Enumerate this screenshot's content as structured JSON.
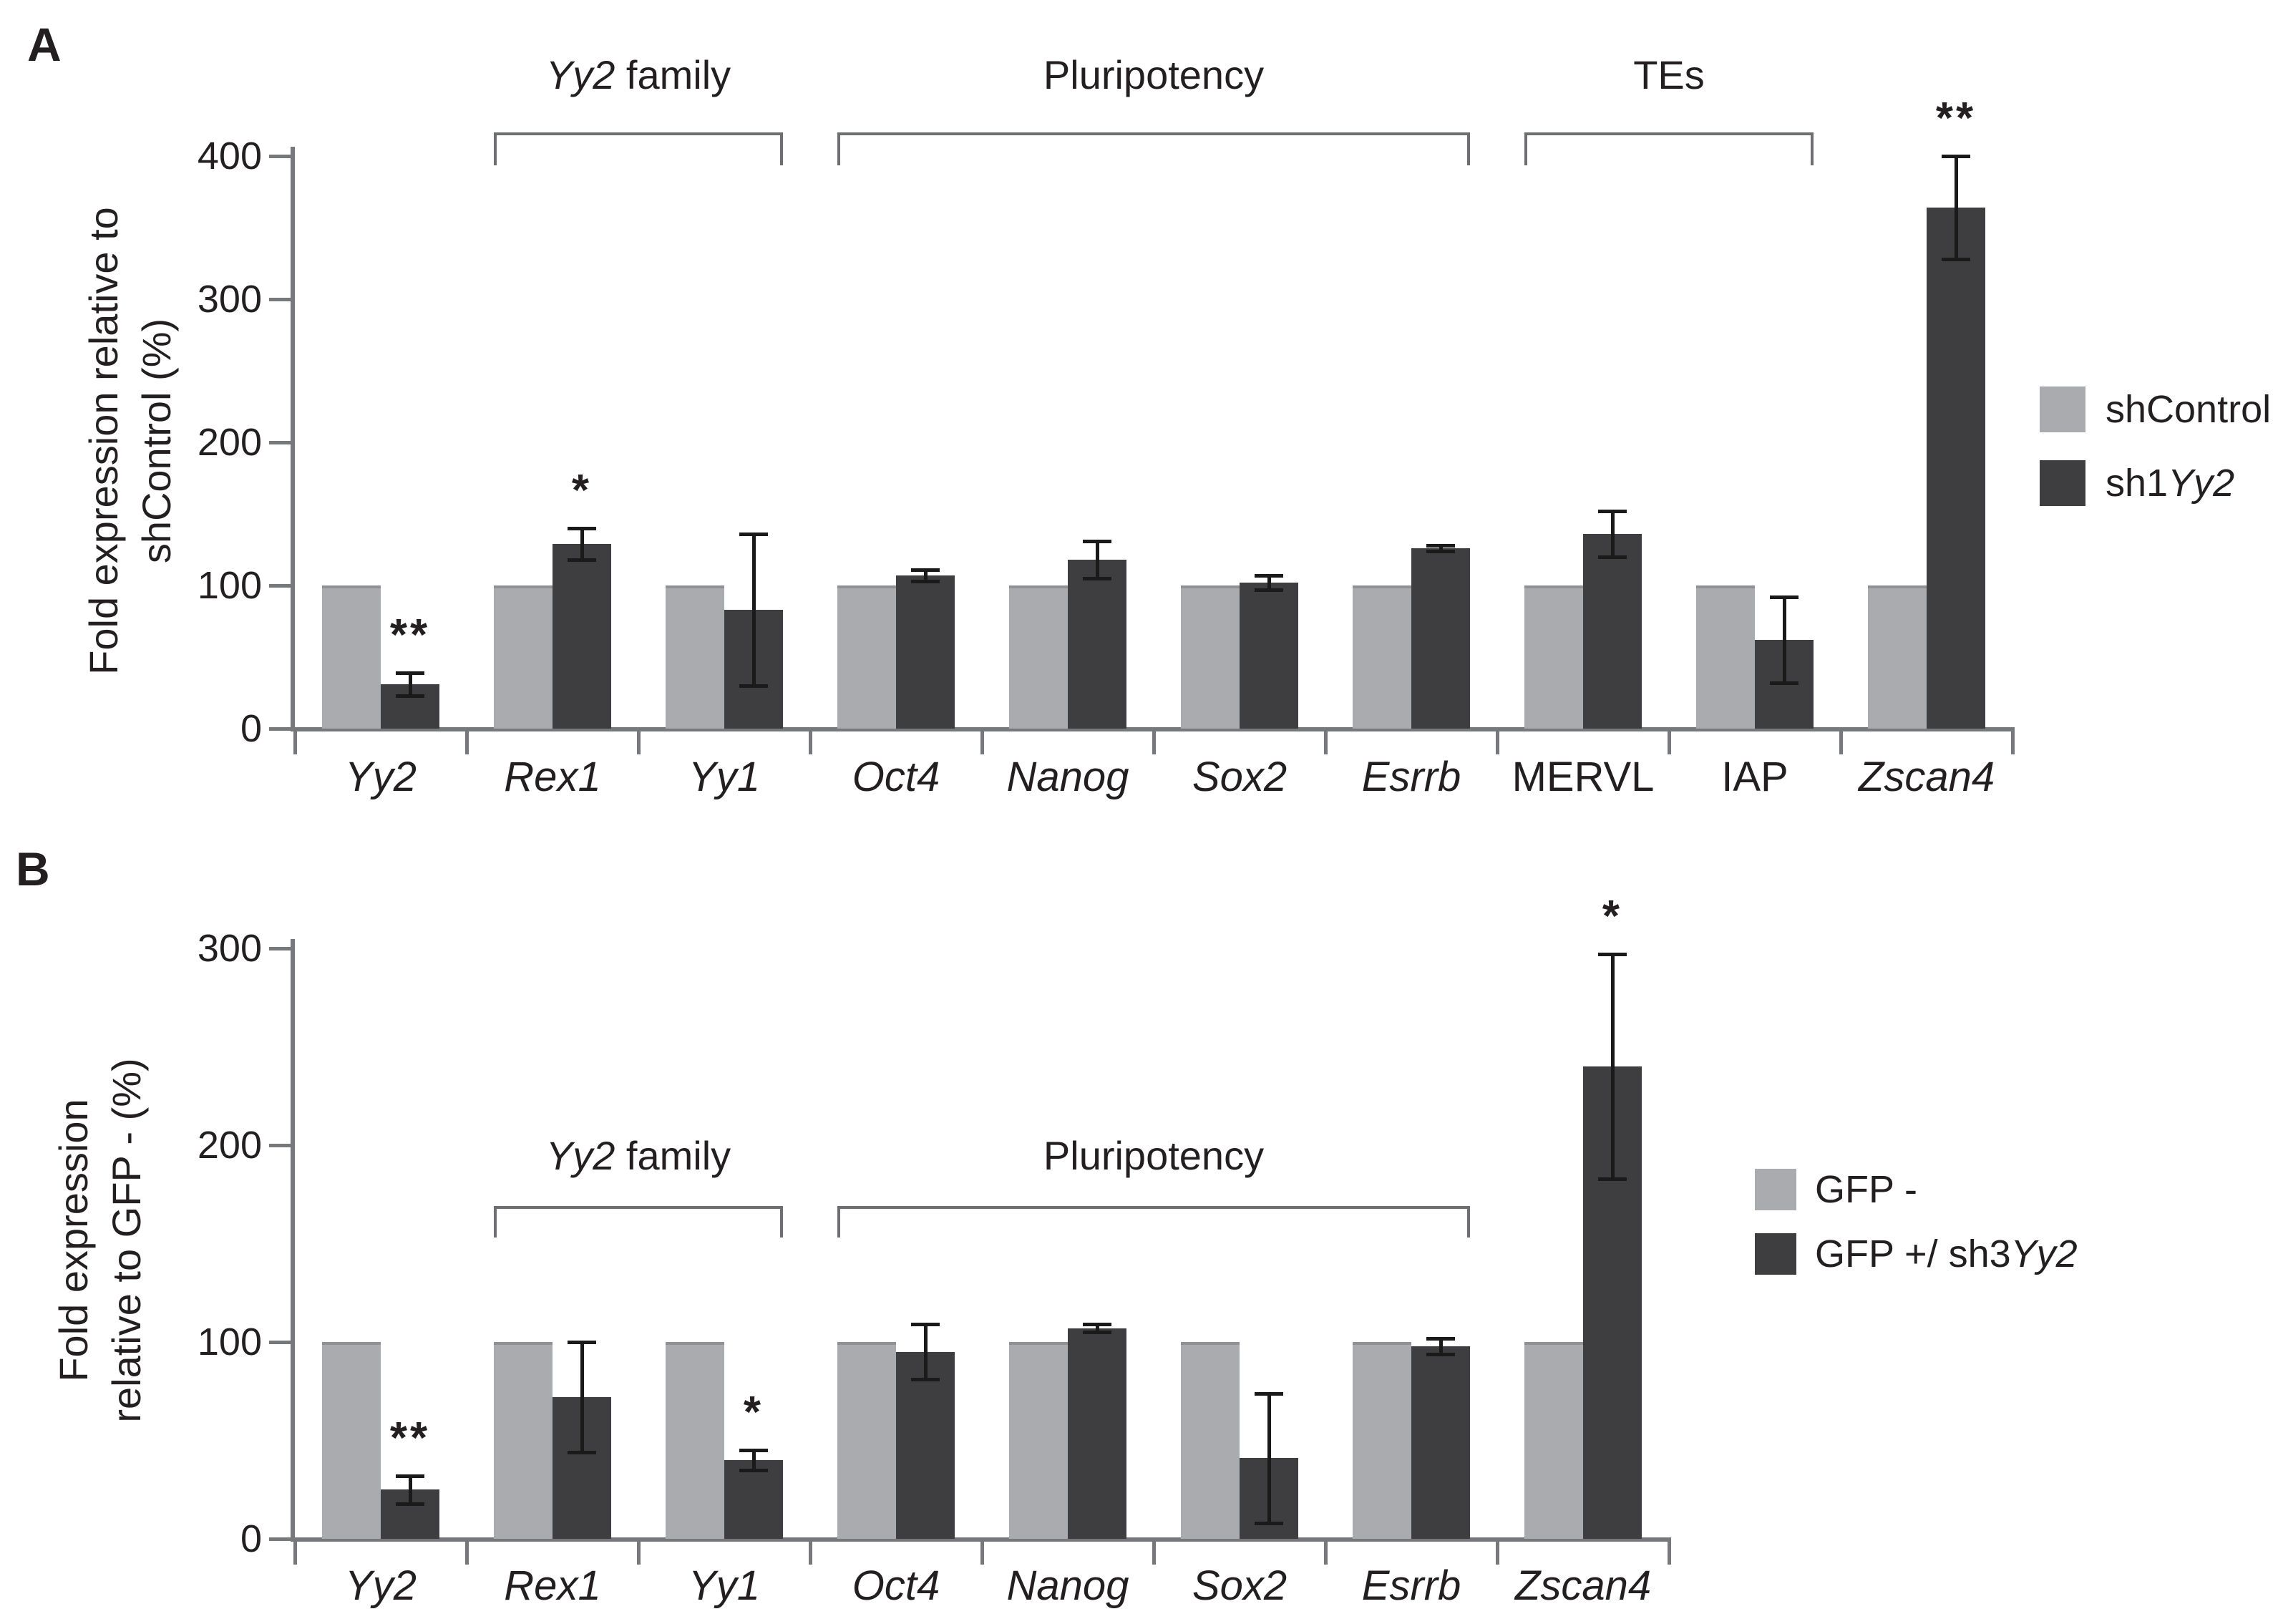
{
  "figure": {
    "colors": {
      "control_bar": "#a9abae",
      "control_bar_cap": "#8f9194",
      "treatment_bar": "#3e3e40",
      "axis": "#77787b",
      "bracket": "#6d6e71",
      "error_bar": "#1a1a1a",
      "text": "#231f20",
      "background": "#ffffff"
    },
    "panels": [
      {
        "letter": "A",
        "ylabel_line1": "Fold expression relative to",
        "ylabel_line2": "shControl (%)",
        "legend": [
          {
            "swatch": "control",
            "parts": [
              {
                "t": "shControl"
              }
            ]
          },
          {
            "swatch": "treatment",
            "parts": [
              {
                "t": "sh1"
              },
              {
                "t": "Yy2",
                "i": 1
              }
            ]
          }
        ],
        "brackets": [
          {
            "from": 1,
            "to": 2,
            "parts": [
              {
                "t": "Yy2",
                "i": 1
              },
              {
                "t": " family"
              }
            ]
          },
          {
            "from": 3,
            "to": 6,
            "parts": [
              {
                "t": "Pluripotency"
              }
            ]
          },
          {
            "from": 7,
            "to": 8,
            "parts": [
              {
                "t": "TEs"
              }
            ]
          }
        ],
        "italics": [
          1,
          1,
          1,
          1,
          1,
          1,
          1,
          0,
          0,
          1
        ]
      },
      {
        "letter": "B",
        "ylabel_line1": "Fold expression",
        "ylabel_line2": "relative to GFP - (%)",
        "legend": [
          {
            "swatch": "control",
            "parts": [
              {
                "t": "GFP -"
              }
            ]
          },
          {
            "swatch": "treatment",
            "parts": [
              {
                "t": "GFP +/ sh3"
              },
              {
                "t": "Yy2",
                "i": 1
              }
            ]
          }
        ],
        "brackets": [
          {
            "from": 1,
            "to": 2,
            "parts": [
              {
                "t": "Yy2",
                "i": 1
              },
              {
                "t": " family"
              }
            ]
          },
          {
            "from": 3,
            "to": 6,
            "parts": [
              {
                "t": "Pluripotency"
              }
            ]
          }
        ],
        "italics": [
          1,
          1,
          1,
          1,
          1,
          1,
          1,
          1
        ]
      }
    ]
  },
  "chart_data": [
    {
      "type": "bar",
      "panel": "A",
      "categories": [
        "Yy2",
        "Rex1",
        "Yy1",
        "Oct4",
        "Nanog",
        "Sox2",
        "Esrrb",
        "MERVL",
        "IAP",
        "Zscan4"
      ],
      "series": [
        {
          "name": "shControl",
          "values": [
            100,
            100,
            100,
            100,
            100,
            100,
            100,
            100,
            100,
            100
          ]
        },
        {
          "name": "sh1Yy2",
          "values": [
            31,
            129,
            83,
            107,
            118,
            102,
            126,
            136,
            62,
            364
          ],
          "errors": [
            8,
            11,
            53,
            4,
            13,
            5,
            2,
            16,
            30,
            36
          ],
          "significance": [
            "**",
            "*",
            "",
            "",
            "",
            "",
            "",
            "",
            "",
            "**"
          ]
        }
      ],
      "ylabel": "Fold expression relative to shControl (%)",
      "ylim": [
        0,
        400
      ],
      "yticks": [
        0,
        100,
        200,
        300,
        400
      ],
      "grid": false,
      "legend_position": "right",
      "group_brackets": [
        {
          "label": "Yy2 family",
          "from": "Rex1",
          "to": "Yy1"
        },
        {
          "label": "Pluripotency",
          "from": "Oct4",
          "to": "Esrrb"
        },
        {
          "label": "TEs",
          "from": "MERVL",
          "to": "IAP"
        }
      ]
    },
    {
      "type": "bar",
      "panel": "B",
      "categories": [
        "Yy2",
        "Rex1",
        "Yy1",
        "Oct4",
        "Nanog",
        "Sox2",
        "Esrrb",
        "Zscan4"
      ],
      "series": [
        {
          "name": "GFP -",
          "values": [
            100,
            100,
            100,
            100,
            100,
            100,
            100,
            100
          ]
        },
        {
          "name": "GFP +/ sh3Yy2",
          "values": [
            25,
            72,
            40,
            95,
            107,
            41,
            98,
            240
          ],
          "errors": [
            7,
            28,
            5,
            14,
            2,
            33,
            4,
            57
          ],
          "significance": [
            "**",
            "",
            "*",
            "",
            "",
            "",
            "",
            "*"
          ]
        }
      ],
      "ylabel": "Fold expression relative to GFP - (%)",
      "ylim": [
        0,
        300
      ],
      "yticks": [
        0,
        100,
        200,
        300
      ],
      "grid": false,
      "legend_position": "right",
      "group_brackets": [
        {
          "label": "Yy2 family",
          "from": "Rex1",
          "to": "Yy1"
        },
        {
          "label": "Pluripotency",
          "from": "Oct4",
          "to": "Esrrb"
        }
      ]
    }
  ]
}
